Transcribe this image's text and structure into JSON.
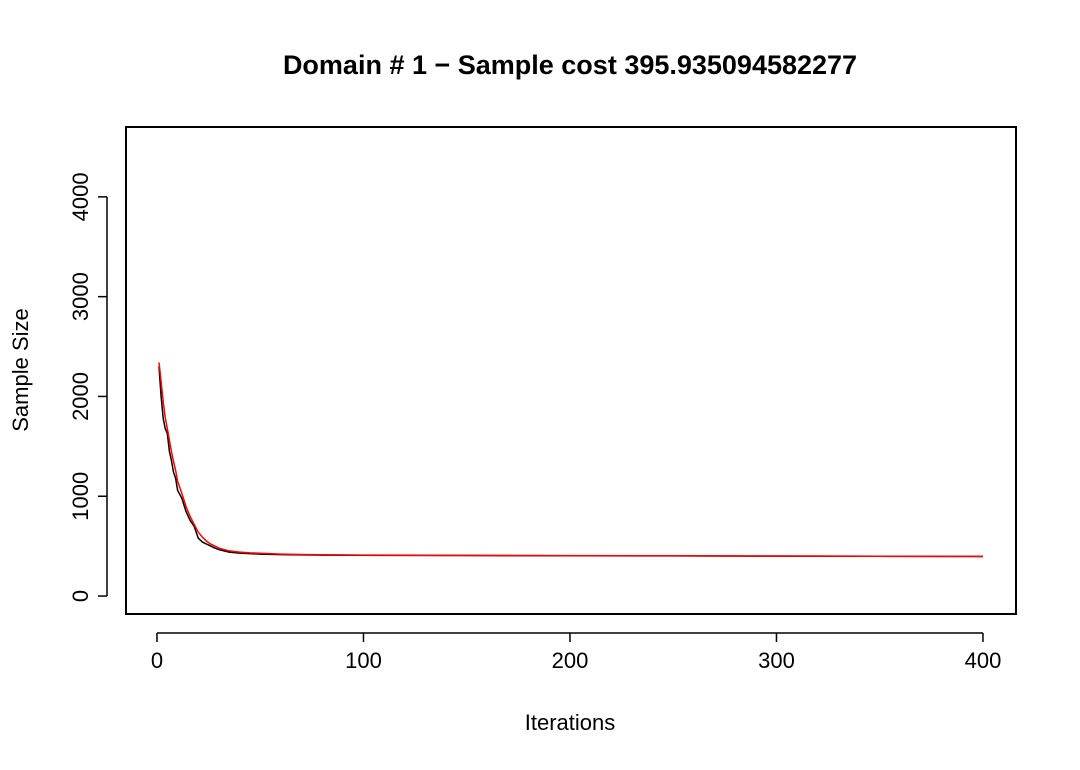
{
  "chart_data": {
    "type": "line",
    "title": "Domain # 1  − Sample cost 395.935094582277",
    "title_color": "#ff0000",
    "xlabel": "Iterations",
    "ylabel": "Sample Size",
    "xlim": [
      -15,
      416
    ],
    "ylim": [
      -180,
      4700
    ],
    "x_ticks": [
      0,
      100,
      200,
      300,
      400
    ],
    "x_tick_labels": [
      "0",
      "100",
      "200",
      "300",
      "400"
    ],
    "y_ticks": [
      0,
      1000,
      2000,
      3000,
      4000
    ],
    "y_tick_labels": [
      "0",
      "1000",
      "2000",
      "3000",
      "4000"
    ],
    "grid": false,
    "legend": "none",
    "series": [
      {
        "color": "#000000",
        "x": [
          1,
          2,
          3,
          4,
          5,
          6,
          7,
          8,
          9,
          10,
          12,
          14,
          16,
          18,
          20,
          22,
          24,
          26,
          28,
          30,
          32,
          35,
          40,
          45,
          50,
          60,
          70,
          80,
          100,
          150,
          200,
          250,
          300,
          350,
          400
        ],
        "y": [
          2300,
          2000,
          1780,
          1680,
          1630,
          1450,
          1360,
          1240,
          1180,
          1060,
          980,
          850,
          760,
          700,
          580,
          540,
          520,
          500,
          480,
          465,
          455,
          440,
          430,
          425,
          420,
          415,
          412,
          410,
          408,
          406,
          404,
          402,
          400,
          398,
          396
        ]
      },
      {
        "color": "#ff0000",
        "x": [
          1,
          2,
          3,
          4,
          5,
          6,
          7,
          8,
          9,
          10,
          12,
          14,
          16,
          18,
          20,
          22,
          24,
          26,
          28,
          30,
          32,
          35,
          40,
          45,
          50,
          60,
          70,
          80,
          100,
          150,
          200,
          250,
          300,
          350,
          400
        ],
        "y": [
          2340,
          2150,
          1950,
          1790,
          1680,
          1560,
          1450,
          1350,
          1260,
          1150,
          1030,
          900,
          800,
          720,
          640,
          590,
          550,
          520,
          500,
          480,
          468,
          452,
          440,
          432,
          428,
          420,
          416,
          413,
          410,
          407,
          405,
          403,
          401,
          399,
          397
        ]
      }
    ]
  }
}
